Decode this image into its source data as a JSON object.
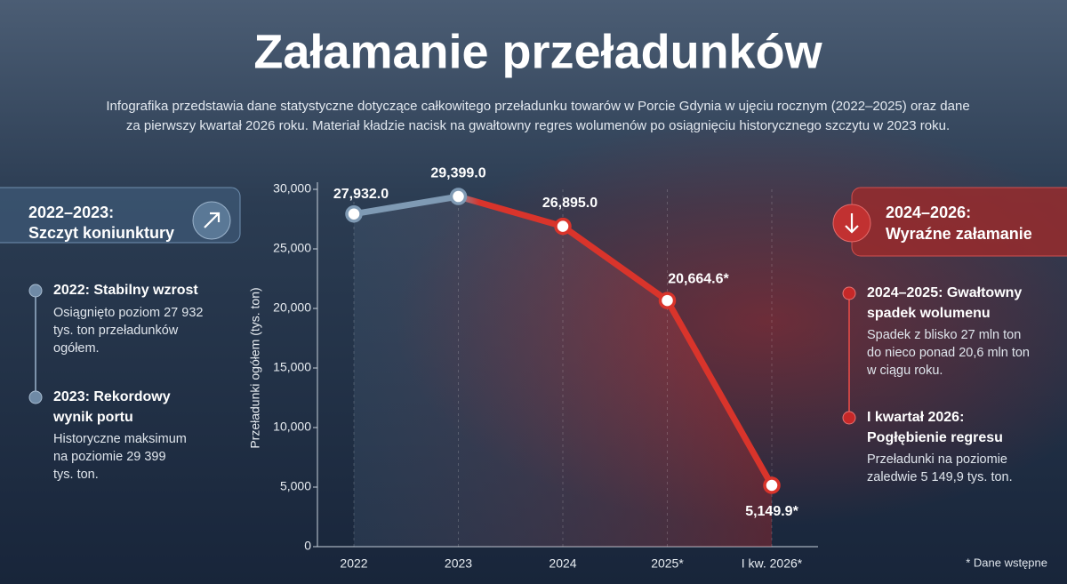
{
  "chart_data": {
    "type": "line",
    "title": "Załamanie przeładunków",
    "subtitle": [
      "Infografika przedstawia dane statystyczne dotyczące całkowitego przeładunku towarów w Porcie Gdynia w ujęciu rocznym (2022–2025) oraz dane",
      "za pierwszy kwartał 2026 roku. Materiał kładzie nacisk na gwałtowny regres wolumenów po osiągnięciu historycznego szczytu w 2023 roku."
    ],
    "y_label": "Przeładunki ogółem (tys. ton)",
    "categories": [
      "2022",
      "2023",
      "2024",
      "2025*",
      "I kw. 2026*"
    ],
    "values": [
      27932,
      29399,
      26895,
      20664.6,
      5149.9
    ],
    "value_labels": [
      "27,932.0",
      "29,399.0",
      "26,895.0",
      "20,664.6*",
      "5,149.9*"
    ],
    "colors": [
      "#7f9ab4",
      "#d9342b"
    ],
    "ylim": [
      0,
      30000
    ],
    "yticks": [
      0,
      {
        "value": 5000,
        "label": "5,000"
      },
      {
        "value": 10000,
        "label": "10,000"
      },
      {
        "value": 15000,
        "label": "15,000"
      },
      {
        "value": 20000,
        "label": "20,000"
      },
      {
        "value": 25000,
        "label": "25,000"
      },
      {
        "value": 30000,
        "label": "30,000"
      }
    ]
  },
  "left_panel": {
    "heading": [
      "2022–2023:",
      "Szczyt koniunktury"
    ],
    "items": [
      {
        "title": [
          "2022: Stabilny wzrost"
        ],
        "text": [
          "Osiągnięto poziom 27 932",
          "tys. ton przeładunków",
          "ogółem."
        ]
      },
      {
        "title": [
          "2023: Rekordowy",
          "wynik portu"
        ],
        "text": [
          "Historyczne maksimum",
          "na poziomie 29 399",
          "tys. ton."
        ]
      }
    ]
  },
  "right_panel": {
    "heading": [
      "2024–2026:",
      "Wyraźne załamanie"
    ],
    "items": [
      {
        "title": [
          "2024–2025: Gwałtowny",
          "spadek wolumenu"
        ],
        "text": [
          "Spadek z blisko 27 mln ton",
          "do nieco ponad 20,6 mln ton",
          "w ciągu roku."
        ]
      },
      {
        "title": [
          "I kwartał 2026:",
          "Pogłębienie regresu"
        ],
        "text": [
          "Przeładunki na poziomie",
          "zaledwie 5 149,9 tys. ton."
        ]
      }
    ]
  },
  "footnote": "* Dane wstępne"
}
